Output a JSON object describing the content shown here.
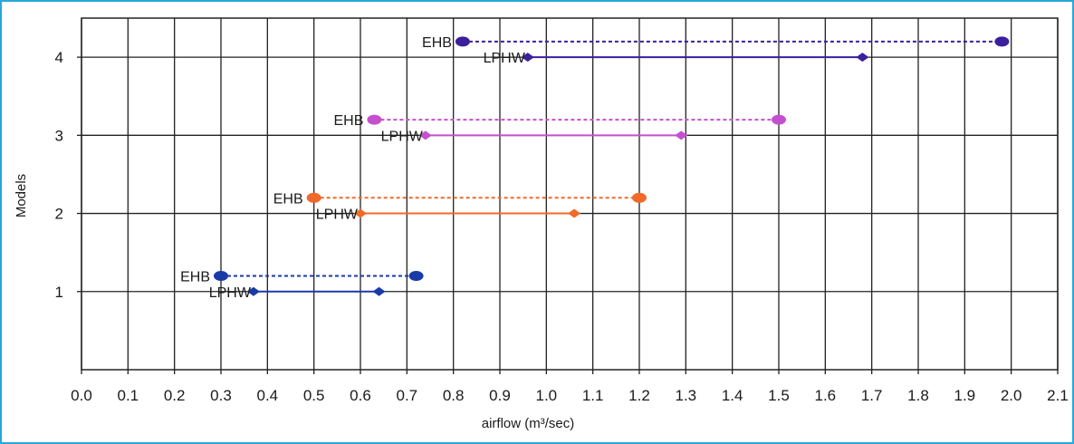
{
  "chart_data": {
    "type": "range",
    "xlabel": "airflow (m³/sec)",
    "ylabel": "Models",
    "xlim": [
      0.0,
      2.1
    ],
    "ylim": [
      0,
      4.5
    ],
    "x_ticks": [
      "0.0",
      "0.1",
      "0.2",
      "0.3",
      "0.4",
      "0.5",
      "0.6",
      "0.7",
      "0.8",
      "0.9",
      "1.0",
      "1.1",
      "1.2",
      "1.3",
      "1.4",
      "1.5",
      "1.6",
      "1.7",
      "1.8",
      "1.9",
      "2.0",
      "2.1"
    ],
    "y_ticks": [
      "1",
      "2",
      "3",
      "4"
    ],
    "grid": true,
    "series": [
      {
        "model": 1,
        "label": "EHB",
        "min": 0.3,
        "max": 0.72,
        "color": "#1a3aa8",
        "dashed": true,
        "y": 1.2
      },
      {
        "model": 1,
        "label": "LPHW",
        "min": 0.37,
        "max": 0.64,
        "color": "#1a3aa8",
        "dashed": false,
        "y": 1.0
      },
      {
        "model": 2,
        "label": "EHB",
        "min": 0.5,
        "max": 1.2,
        "color": "#f06a2a",
        "dashed": true,
        "y": 2.2
      },
      {
        "model": 2,
        "label": "LPHW",
        "min": 0.6,
        "max": 1.06,
        "color": "#f06a2a",
        "dashed": false,
        "y": 2.0
      },
      {
        "model": 3,
        "label": "EHB",
        "min": 0.63,
        "max": 1.5,
        "color": "#c64fcf",
        "dashed": true,
        "y": 3.2
      },
      {
        "model": 3,
        "label": "LPHW",
        "min": 0.74,
        "max": 1.29,
        "color": "#c64fcf",
        "dashed": false,
        "y": 3.0
      },
      {
        "model": 4,
        "label": "EHB",
        "min": 0.82,
        "max": 1.98,
        "color": "#3b1f9c",
        "dashed": true,
        "y": 4.2
      },
      {
        "model": 4,
        "label": "LPHW",
        "min": 0.96,
        "max": 1.68,
        "color": "#3b1f9c",
        "dashed": false,
        "y": 4.0
      }
    ]
  }
}
